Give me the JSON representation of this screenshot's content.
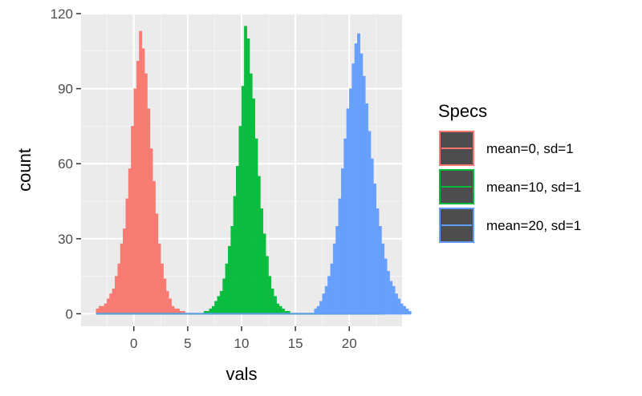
{
  "chart_data": {
    "type": "histogram",
    "title": "",
    "xlabel": "vals",
    "ylabel": "count",
    "xlim": [
      -4.9,
      24.9
    ],
    "ylim": [
      -5,
      120
    ],
    "x_ticks": [
      0,
      5,
      10,
      15,
      20
    ],
    "y_ticks": [
      0,
      30,
      60,
      90,
      120
    ],
    "grid": true,
    "legend": {
      "title": "Specs",
      "position": "right"
    },
    "bin_start": -3.5,
    "bin_width": 0.25,
    "series": [
      {
        "name": "mean=0, sd=1",
        "color": "#F8766D",
        "counts": [
          2,
          3,
          3,
          4,
          6,
          8,
          10,
          15,
          20,
          28,
          34,
          46,
          58,
          75,
          90,
          101,
          113,
          106,
          96,
          82,
          66,
          53,
          40,
          28,
          20,
          14,
          9,
          6,
          3,
          2,
          2,
          1,
          1,
          0,
          0,
          0,
          0,
          0,
          0,
          0,
          0,
          0,
          0,
          0,
          0,
          0,
          0,
          0,
          0,
          0,
          0,
          0,
          0,
          0,
          0,
          0,
          0,
          0,
          0,
          0,
          0,
          0,
          0,
          0,
          0,
          0,
          0,
          0,
          0,
          0,
          0,
          0,
          0,
          0,
          0,
          0,
          0,
          0,
          0,
          0,
          0,
          0,
          0,
          0,
          0,
          0,
          0,
          0,
          0,
          0,
          0,
          0,
          0,
          0,
          0,
          0,
          0,
          0,
          0,
          0,
          0,
          0,
          0,
          0,
          0,
          0,
          0
        ]
      },
      {
        "name": "mean=10, sd=1",
        "color": "#00BA38",
        "counts": [
          0,
          0,
          0,
          0,
          0,
          0,
          0,
          0,
          0,
          0,
          0,
          0,
          0,
          0,
          0,
          0,
          0,
          0,
          0,
          0,
          0,
          0,
          0,
          0,
          0,
          0,
          0,
          0,
          0,
          0,
          0,
          0,
          0,
          0,
          0,
          0,
          0,
          0,
          0,
          0,
          1,
          1,
          2,
          3,
          5,
          7,
          9,
          14,
          20,
          27,
          35,
          47,
          59,
          75,
          91,
          115,
          110,
          96,
          86,
          70,
          55,
          42,
          32,
          23,
          15,
          10,
          7,
          4,
          3,
          2,
          1,
          1,
          0,
          0,
          0,
          0,
          0,
          0,
          0,
          0,
          0,
          0,
          0,
          0,
          0,
          0,
          0,
          0,
          0,
          0,
          0,
          0,
          0,
          0,
          0,
          0,
          0,
          0,
          0,
          0,
          0,
          0,
          0,
          0,
          0,
          0,
          0
        ]
      },
      {
        "name": "mean=20, sd=1",
        "color": "#619CFF",
        "counts": [
          0,
          0,
          0,
          0,
          0,
          0,
          0,
          0,
          0,
          0,
          0,
          0,
          0,
          0,
          0,
          0,
          0,
          0,
          0,
          0,
          0,
          0,
          0,
          0,
          0,
          0,
          0,
          0,
          0,
          0,
          0,
          0,
          0,
          0,
          0,
          0,
          0,
          0,
          0,
          0,
          0,
          0,
          0,
          0,
          0,
          0,
          0,
          0,
          0,
          0,
          0,
          0,
          0,
          0,
          0,
          0,
          0,
          0,
          0,
          0,
          0,
          0,
          0,
          0,
          0,
          0,
          0,
          0,
          0,
          0,
          0,
          0,
          0,
          0,
          0,
          0,
          0,
          0,
          0,
          0,
          0,
          2,
          3,
          5,
          8,
          11,
          15,
          20,
          28,
          35,
          46,
          58,
          70,
          82,
          90,
          100,
          108,
          112,
          104,
          95,
          84,
          73,
          62,
          52,
          42,
          35,
          28,
          22,
          17,
          13,
          11,
          8,
          6,
          4,
          3,
          2,
          1
        ]
      }
    ]
  }
}
